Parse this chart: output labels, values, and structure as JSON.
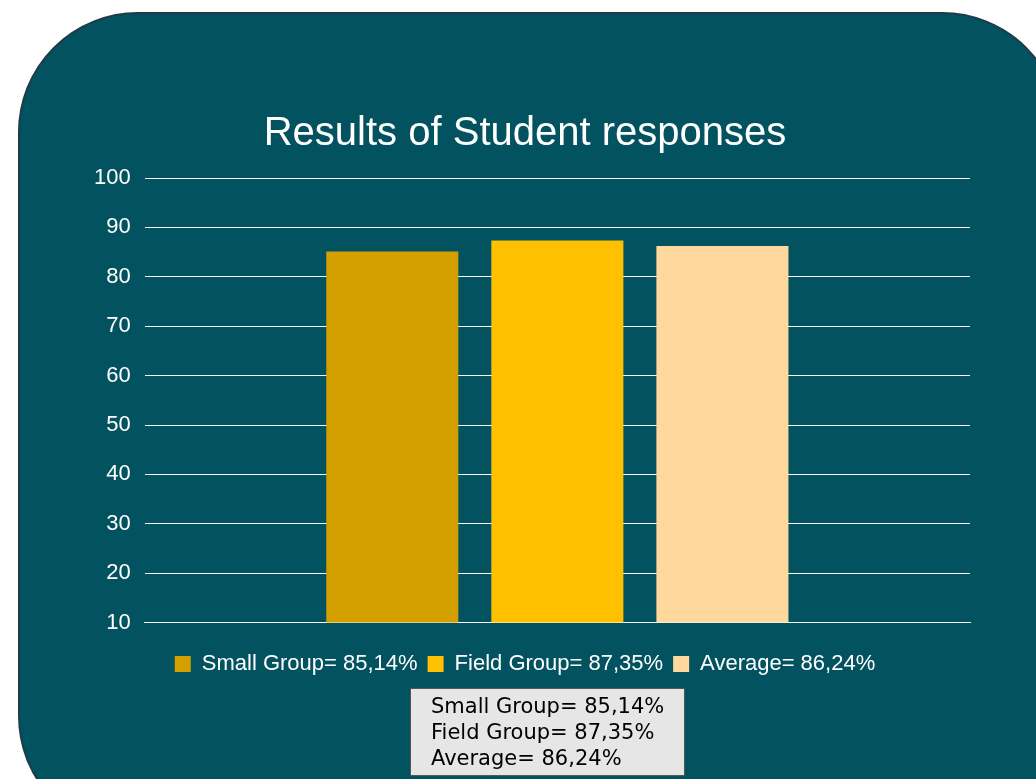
{
  "chart_data": {
    "type": "bar",
    "title": "Results of Student responses",
    "categories": [
      null
    ],
    "series": [
      {
        "name": "Small Group= 85,14%",
        "color": "#d4a000",
        "values": [
          85.14
        ]
      },
      {
        "name": "Field Group= 87,35%",
        "color": "#ffc000",
        "values": [
          87.35
        ]
      },
      {
        "name": "Average= 86,24%",
        "color": "#ffd89e",
        "values": [
          86.24
        ]
      }
    ],
    "ylim": [
      10,
      100
    ],
    "yticks": [
      10,
      20,
      30,
      40,
      50,
      60,
      70,
      80,
      90,
      100
    ],
    "grid": "y",
    "legend": "bottom",
    "annotations": [
      "Small Group= 85,14%",
      "Field Group= 87,35%",
      "Average= 86,24%"
    ]
  }
}
